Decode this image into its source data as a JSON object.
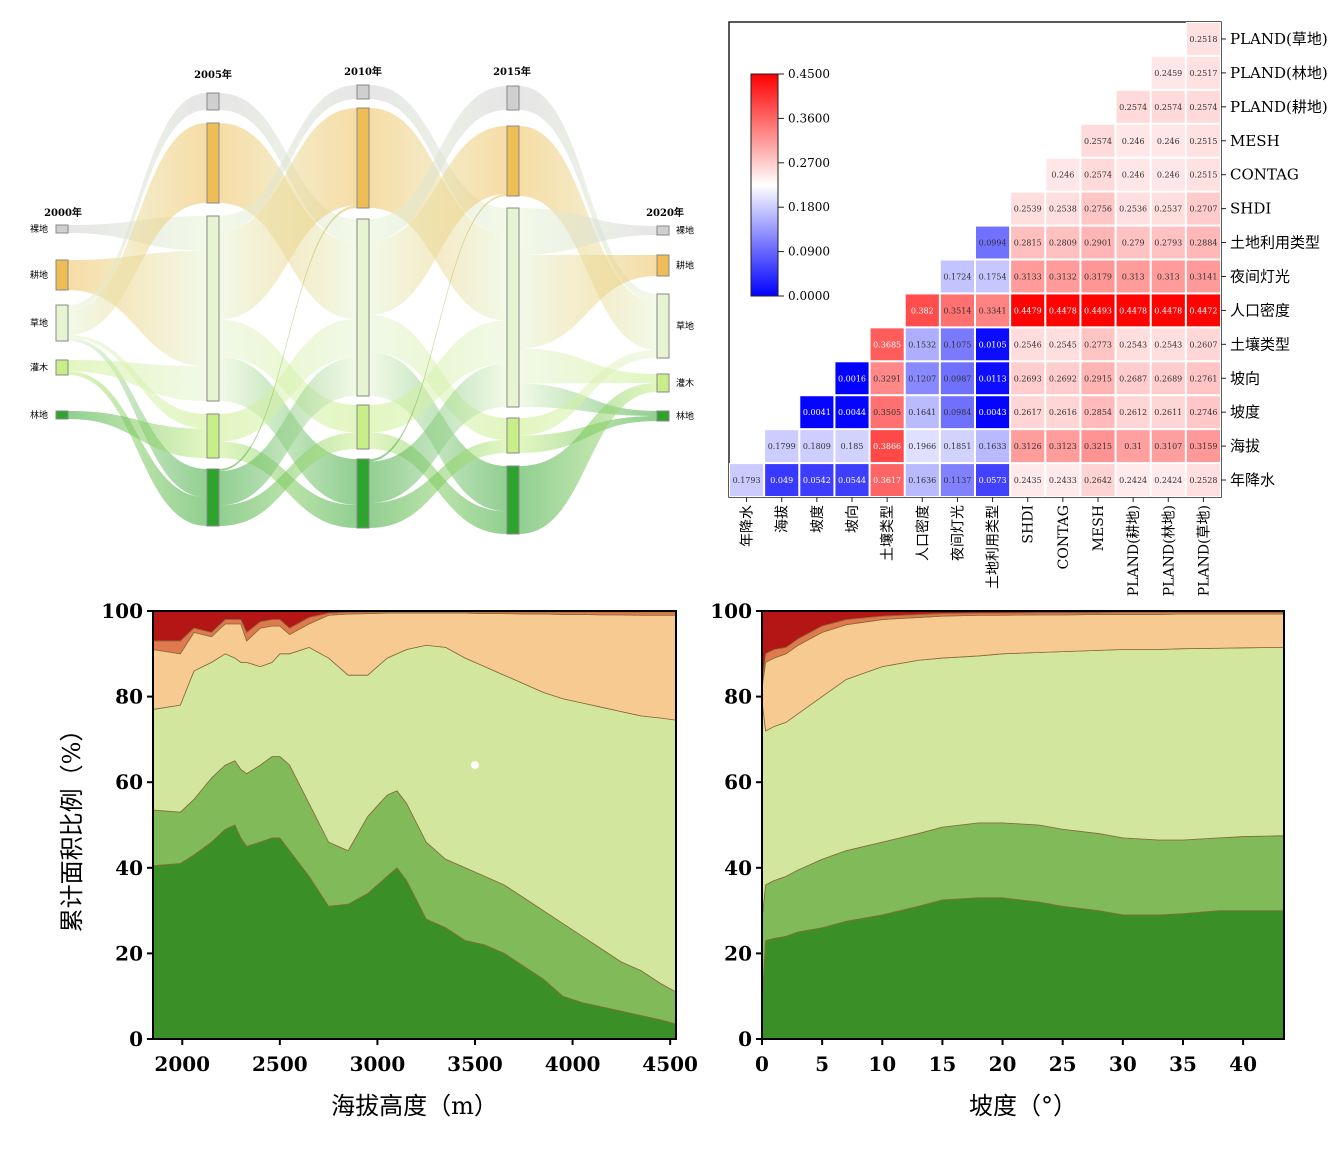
{
  "chart_data": [
    {
      "type": "sankey",
      "columns": [
        "2000年",
        "2005年",
        "2010年",
        "2015年",
        "2020年"
      ],
      "nodes": [
        "裸地",
        "耕地",
        "草地",
        "灌木",
        "林地"
      ],
      "node_colors": [
        "#cfcfcf",
        "#eebd55",
        "#e6f4d2",
        "#c8ee88",
        "#2ea32e"
      ],
      "links": [
        [
          [
            0,
            2,
            3
          ],
          [
            1,
            2,
            10
          ],
          [
            2,
            0,
            2
          ],
          [
            2,
            1,
            8
          ],
          [
            2,
            3,
            1
          ],
          [
            2,
            4,
            1
          ],
          [
            3,
            2,
            3
          ],
          [
            3,
            4,
            1
          ],
          [
            4,
            3,
            2
          ]
        ],
        [
          [
            0,
            2,
            3
          ],
          [
            1,
            2,
            10
          ],
          [
            2,
            0,
            2
          ],
          [
            2,
            1,
            12
          ],
          [
            2,
            3,
            5
          ],
          [
            2,
            4,
            6
          ],
          [
            3,
            2,
            5
          ],
          [
            3,
            4,
            3
          ],
          [
            4,
            2,
            5
          ],
          [
            4,
            1,
            0.3
          ],
          [
            4,
            3,
            3
          ]
        ],
        [
          [
            0,
            2,
            3
          ],
          [
            1,
            2,
            10
          ],
          [
            2,
            0,
            3
          ],
          [
            2,
            1,
            10
          ],
          [
            2,
            3,
            5
          ],
          [
            2,
            4,
            6
          ],
          [
            3,
            2,
            5
          ],
          [
            3,
            4,
            3
          ],
          [
            4,
            2,
            5
          ],
          [
            4,
            1,
            0.3
          ],
          [
            4,
            3,
            3
          ]
        ],
        [
          [
            0,
            2,
            1
          ],
          [
            1,
            2,
            6
          ],
          [
            2,
            0,
            2
          ],
          [
            2,
            1,
            4
          ],
          [
            2,
            3,
            1.5
          ],
          [
            2,
            4,
            1
          ],
          [
            3,
            2,
            1
          ],
          [
            3,
            4,
            1
          ],
          [
            4,
            3,
            1.5
          ]
        ]
      ]
    },
    {
      "type": "heatmap",
      "row_labels": [
        "PLAND(草地)",
        "PLAND(林地)",
        "PLAND(耕地)",
        "MESH",
        "CONTAG",
        "SHDI",
        "土地利用类型",
        "夜间灯光",
        "人口密度",
        "土壤类型",
        "坡向",
        "坡度",
        "海拔",
        "年降水"
      ],
      "col_labels": [
        "年降水",
        "海拔",
        "坡度",
        "坡向",
        "土壤类型",
        "人口密度",
        "夜间灯光",
        "土地利用类型",
        "SHDI",
        "CONTAG",
        "MESH",
        "PLAND(耕地)",
        "PLAND(林地)",
        "PLAND(草地)"
      ],
      "values": [
        [
          0.2518
        ],
        [
          0.2459,
          0.2517
        ],
        [
          0.2574,
          0.2574,
          0.2574
        ],
        [
          0.2574,
          0.246,
          0.246,
          0.2515
        ],
        [
          0.246,
          0.2574,
          0.246,
          0.246,
          0.2515
        ],
        [
          0.2539,
          0.2538,
          0.2756,
          0.2536,
          0.2537,
          0.2707
        ],
        [
          0.0994,
          0.2815,
          0.2809,
          0.2901,
          0.279,
          0.2793,
          0.2884
        ],
        [
          0.1724,
          0.1754,
          0.3133,
          0.3132,
          0.3179,
          0.313,
          0.313,
          0.3141
        ],
        [
          0.382,
          0.3514,
          0.3341,
          0.4479,
          0.4478,
          0.4493,
          0.4478,
          0.4478,
          0.4472
        ],
        [
          0.3685,
          0.1532,
          0.1075,
          0.0105,
          0.2546,
          0.2545,
          0.2773,
          0.2543,
          0.2543,
          0.2607
        ],
        [
          0.0016,
          0.3291,
          0.1207,
          0.0987,
          0.0113,
          0.2693,
          0.2692,
          0.2915,
          0.2687,
          0.2689,
          0.2761
        ],
        [
          0.0041,
          0.0044,
          0.3505,
          0.1641,
          0.0984,
          0.0043,
          0.2617,
          0.2616,
          0.2854,
          0.2612,
          0.2611,
          0.2746
        ],
        [
          0.1799,
          0.1809,
          0.185,
          0.3866,
          0.1966,
          0.1851,
          0.1633,
          0.3126,
          0.3123,
          0.3215,
          0.31,
          0.3107,
          0.3159
        ],
        [
          0.1793,
          0.049,
          0.0542,
          0.0544,
          0.3617,
          0.1636,
          0.1137,
          0.0573,
          0.2435,
          0.2433,
          0.2642,
          0.2424,
          0.2424,
          0.2528
        ]
      ],
      "colorbar": {
        "range": [
          0,
          0.45
        ],
        "ticks": [
          "0.4500",
          "0.3600",
          "0.2700",
          "0.1800",
          "0.0900",
          "0.0000"
        ],
        "low_color": "#0000ff",
        "mid_color": "#ffffff",
        "high_color": "#ff0000"
      }
    },
    {
      "type": "area",
      "stacked": true,
      "xlabel": "海拔高度（m）",
      "ylabel": "累计面积比例（%）",
      "xlim": [
        1850,
        4530
      ],
      "ylim": [
        0,
        100
      ],
      "xticks": [
        2000,
        2500,
        3000,
        3500,
        4000,
        4500
      ],
      "yticks": [
        0,
        20,
        40,
        60,
        80,
        100
      ],
      "colors": [
        "#3a8f27",
        "#80ba59",
        "#d3e69e",
        "#f6ca91",
        "#e07a4e",
        "#b41515"
      ],
      "annotation_point": [
        3500,
        64
      ],
      "x": [
        1850,
        1990,
        2060,
        2150,
        2220,
        2270,
        2300,
        2330,
        2400,
        2460,
        2500,
        2550,
        2650,
        2750,
        2850,
        2950,
        3050,
        3100,
        3150,
        3250,
        3350,
        3450,
        3550,
        3650,
        3750,
        3850,
        3950,
        4050,
        4150,
        4250,
        4350,
        4450,
        4530
      ],
      "cumulative": [
        [
          40.5,
          41,
          43,
          46,
          49,
          50,
          47,
          45,
          46,
          47,
          47,
          44,
          38,
          31,
          31.5,
          34,
          38,
          40,
          37,
          28,
          26,
          23,
          22,
          20,
          17,
          14,
          10,
          8.5,
          7.5,
          6.5,
          5.5,
          4.5,
          3.5
        ],
        [
          53.5,
          53,
          56,
          61,
          64,
          65,
          63,
          62,
          64,
          66,
          66,
          64,
          55,
          46,
          44,
          52,
          57,
          58,
          55,
          46,
          42,
          40,
          38,
          36,
          33,
          30,
          27,
          24,
          21,
          18,
          16,
          13,
          11
        ],
        [
          77,
          78,
          86,
          88,
          90,
          89,
          88,
          88,
          87,
          88,
          90,
          90,
          91.5,
          89,
          85,
          85,
          89,
          90,
          91,
          92,
          91.5,
          89,
          87,
          85,
          83,
          81,
          79.5,
          78.5,
          77.5,
          76.5,
          75.5,
          75,
          74.5
        ],
        [
          91,
          90,
          95,
          94,
          97,
          97,
          97,
          93,
          96,
          96.5,
          96.5,
          94.5,
          97,
          99,
          99.3,
          99.4,
          99.5,
          99.5,
          99.5,
          99.5,
          99.5,
          99.5,
          99.4,
          99.4,
          99.3,
          99.3,
          99.2,
          99.2,
          99.1,
          99.1,
          99,
          99,
          99
        ],
        [
          93,
          93,
          96,
          95,
          98,
          98,
          98,
          95,
          97.5,
          98,
          98,
          96,
          98.5,
          99.5,
          99.7,
          99.8,
          99.8,
          99.8,
          99.8,
          99.8,
          99.8,
          99.8,
          99.8,
          99.8,
          99.8,
          99.8,
          99.8,
          99.8,
          99.8,
          99.8,
          99.8,
          99.8,
          99.8
        ],
        [
          100,
          100,
          100,
          100,
          100,
          100,
          100,
          100,
          100,
          100,
          100,
          100,
          100,
          100,
          100,
          100,
          100,
          100,
          100,
          100,
          100,
          100,
          100,
          100,
          100,
          100,
          100,
          100,
          100,
          100,
          100,
          100,
          100
        ]
      ]
    },
    {
      "type": "area",
      "stacked": true,
      "xlabel": "坡度（°）",
      "ylim": [
        0,
        100
      ],
      "xlim": [
        0,
        43.4
      ],
      "xticks": [
        0,
        5,
        10,
        15,
        20,
        25,
        30,
        35,
        40
      ],
      "yticks": [
        0,
        20,
        40,
        60,
        80,
        100
      ],
      "colors": [
        "#3a8f27",
        "#80ba59",
        "#d3e69e",
        "#f6ca91",
        "#e07a4e",
        "#b41515"
      ],
      "x": [
        0,
        0.3,
        1,
        2,
        3,
        5,
        7,
        10,
        13,
        15,
        18,
        20,
        23,
        25,
        28,
        30,
        33,
        35,
        38,
        40,
        43.4
      ],
      "cumulative": [
        [
          9,
          23,
          23.5,
          24,
          25,
          26,
          27.5,
          29,
          31,
          32.5,
          33,
          33,
          32,
          31,
          30,
          29,
          29,
          29.3,
          30,
          30,
          30
        ],
        [
          28,
          36,
          37,
          38,
          39.5,
          42,
          44,
          46,
          48,
          49.5,
          50.5,
          50.5,
          50,
          49,
          48,
          47,
          46.5,
          46.5,
          47,
          47.3,
          47.5
        ],
        [
          79,
          72,
          73,
          74,
          76,
          80,
          84,
          87,
          88.5,
          89,
          89.5,
          90,
          90.3,
          90.5,
          90.8,
          91,
          91,
          91.2,
          91.3,
          91.4,
          91.5
        ],
        [
          82,
          88,
          89,
          90,
          92,
          95,
          96.8,
          98,
          98.5,
          98.8,
          99,
          99,
          99.1,
          99.1,
          99.2,
          99.2,
          99.2,
          99.3,
          99.3,
          99.3,
          99.3
        ],
        [
          83,
          90,
          91,
          91.5,
          93.5,
          96.5,
          98,
          98.8,
          99.2,
          99.4,
          99.5,
          99.5,
          99.6,
          99.6,
          99.6,
          99.7,
          99.7,
          99.7,
          99.7,
          99.7,
          99.7
        ],
        [
          100,
          100,
          100,
          100,
          100,
          100,
          100,
          100,
          100,
          100,
          100,
          100,
          100,
          100,
          100,
          100,
          100,
          100,
          100,
          100,
          100
        ]
      ]
    }
  ]
}
